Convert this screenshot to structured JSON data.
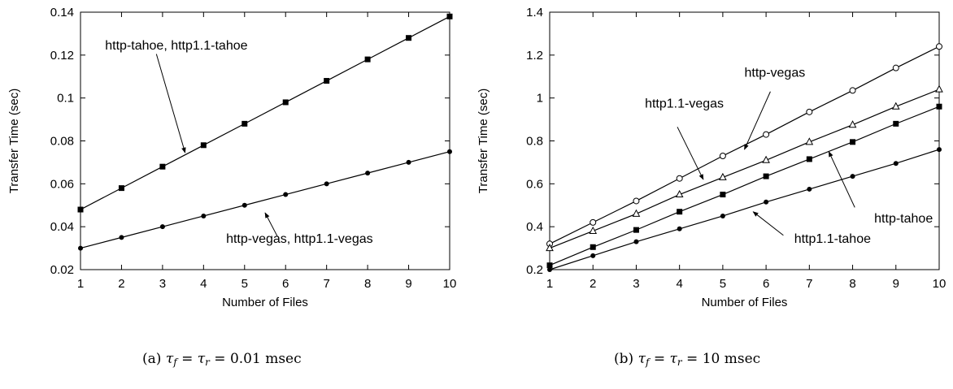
{
  "chart_data": [
    {
      "type": "line",
      "xlabel": "Number of Files",
      "ylabel": "Transfer Time (sec)",
      "xlim": [
        1,
        10
      ],
      "ylim": [
        0.02,
        0.14
      ],
      "xticks": [
        "1",
        "2",
        "3",
        "4",
        "5",
        "6",
        "7",
        "8",
        "9",
        "10"
      ],
      "yticks": [
        "0.02",
        "0.04",
        "0.06",
        "0.08",
        "0.1",
        "0.12",
        "0.14"
      ],
      "x": [
        1,
        2,
        3,
        4,
        5,
        6,
        7,
        8,
        9,
        10
      ],
      "series": [
        {
          "marker": "filled-square",
          "values": [
            0.048,
            0.058,
            0.068,
            0.078,
            0.088,
            0.098,
            0.108,
            0.118,
            0.128,
            0.138
          ]
        },
        {
          "marker": "filled-circle",
          "values": [
            0.03,
            0.035,
            0.04,
            0.045,
            0.05,
            0.055,
            0.06,
            0.065,
            0.07,
            0.075
          ]
        }
      ],
      "annotations": [
        {
          "text": "http-tahoe, http1.1-tahoe",
          "label_at": [
            1.6,
            0.1225
          ],
          "arrow_from": [
            2.85,
            0.1205
          ],
          "arrow_to": [
            3.55,
            0.0745
          ]
        },
        {
          "text": "http-vegas, http1.1-vegas",
          "label_at": [
            4.55,
            0.0325
          ],
          "arrow_from": [
            5.8,
            0.0355
          ],
          "arrow_to": [
            5.5,
            0.0465
          ]
        }
      ],
      "caption_label": "(a)",
      "caption_value": "0.01 msec"
    },
    {
      "type": "line",
      "xlabel": "Number of Files",
      "ylabel": "Transfer Time (sec)",
      "xlim": [
        1,
        10
      ],
      "ylim": [
        0.2,
        1.4
      ],
      "xticks": [
        "1",
        "2",
        "3",
        "4",
        "5",
        "6",
        "7",
        "8",
        "9",
        "10"
      ],
      "yticks": [
        "0.2",
        "0.4",
        "0.6",
        "0.8",
        "1",
        "1.2",
        "1.4"
      ],
      "x": [
        1,
        2,
        3,
        4,
        5,
        6,
        7,
        8,
        9,
        10
      ],
      "series": [
        {
          "marker": "open-circle",
          "values": [
            0.32,
            0.42,
            0.52,
            0.625,
            0.73,
            0.83,
            0.935,
            1.035,
            1.14,
            1.24
          ]
        },
        {
          "marker": "open-triangle",
          "values": [
            0.3,
            0.38,
            0.46,
            0.55,
            0.63,
            0.71,
            0.795,
            0.875,
            0.96,
            1.04
          ]
        },
        {
          "marker": "filled-square",
          "values": [
            0.22,
            0.305,
            0.385,
            0.47,
            0.55,
            0.635,
            0.715,
            0.795,
            0.88,
            0.96
          ]
        },
        {
          "marker": "filled-circle",
          "values": [
            0.2,
            0.265,
            0.33,
            0.39,
            0.45,
            0.515,
            0.575,
            0.635,
            0.695,
            0.76
          ]
        }
      ],
      "annotations": [
        {
          "text": "http-vegas",
          "label_at": [
            5.5,
            1.1
          ],
          "arrow_from": [
            6.1,
            1.03
          ],
          "arrow_to": [
            5.5,
            0.76
          ]
        },
        {
          "text": "http1.1-vegas",
          "label_at": [
            3.2,
            0.955
          ],
          "arrow_from": [
            3.95,
            0.865
          ],
          "arrow_to": [
            4.55,
            0.62
          ]
        },
        {
          "text": "http-tahoe",
          "label_at": [
            8.5,
            0.42
          ],
          "arrow_from": [
            8.05,
            0.49
          ],
          "arrow_to": [
            7.45,
            0.75
          ]
        },
        {
          "text": "http1.1-tahoe",
          "label_at": [
            6.65,
            0.325
          ],
          "arrow_from": [
            6.4,
            0.36
          ],
          "arrow_to": [
            5.7,
            0.47
          ]
        }
      ],
      "caption_label": "(b)",
      "caption_value": "10 msec"
    }
  ]
}
